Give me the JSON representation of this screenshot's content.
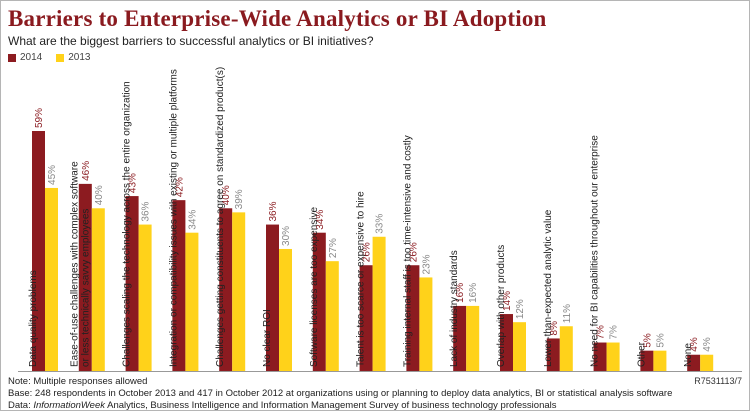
{
  "header": {
    "title": "Barriers to Enterprise-Wide Analytics or BI Adoption",
    "subtitle": "What are the biggest barriers to successful analytics or BI initiatives?"
  },
  "footer": {
    "note": "Note: Multiple responses allowed",
    "base": "Base: 248 respondents in October 2013 and 417 in October 2012 at organizations using or planning to deploy data analytics, BI or statistical analysis software",
    "source_prefix": "Data: ",
    "source_italic": "InformationWeek",
    "source_rest": " Analytics, Business Intelligence and Information Management Survey of business technology professionals",
    "ref": "R7531113/7"
  },
  "colors": {
    "s2014": "#8c1b20",
    "s2013": "#ffd21a",
    "label2014": "#8a1a1f",
    "label2013": "#888888"
  },
  "chart_data": {
    "type": "bar",
    "title": "Barriers to Enterprise-Wide Analytics or BI Adoption",
    "subtitle": "What are the biggest barriers to successful analytics or BI initiatives?",
    "ylim": [
      0,
      59
    ],
    "legend_position": "top-left",
    "categories": [
      [
        "Data quality problems"
      ],
      [
        "Ease-of-use challenges with complex software",
        "or less technically savvy employees"
      ],
      [
        "Challenges scaling the technology across the entire organization"
      ],
      [
        "Integration or compatibility issues with existing or multiple platforms"
      ],
      [
        "Challenges getting constituents to agree on standardized product(s)"
      ],
      [
        "No clear ROI"
      ],
      [
        "Software licenses are too expensive"
      ],
      [
        "Talent is too scarce or expensive to hire"
      ],
      [
        "Training internal staff is too time-intensive and costly"
      ],
      [
        "Lack of industry standards"
      ],
      [
        "Overlap with other products"
      ],
      [
        "Lower-than-expected analytic value"
      ],
      [
        "No need for BI capabilities throughout our enterprise"
      ],
      [
        "Other"
      ],
      [
        "None"
      ]
    ],
    "series": [
      {
        "name": "2014",
        "values": [
          59,
          46,
          43,
          42,
          40,
          36,
          34,
          26,
          26,
          16,
          14,
          8,
          7,
          5,
          4
        ]
      },
      {
        "name": "2013",
        "values": [
          45,
          40,
          36,
          34,
          39,
          30,
          27,
          33,
          23,
          16,
          12,
          11,
          7,
          5,
          4
        ]
      }
    ]
  }
}
